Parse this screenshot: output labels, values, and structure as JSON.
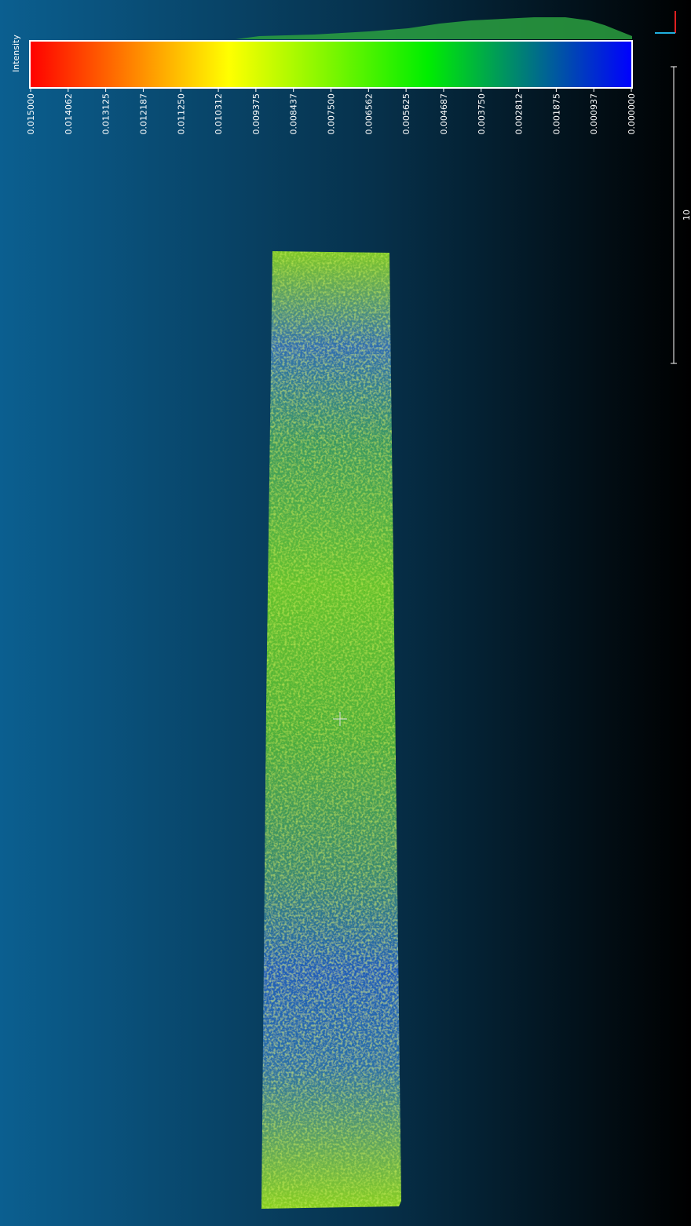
{
  "colorbar": {
    "title": "Intensity",
    "ticks": [
      "0.015000",
      "0.014062",
      "0.013125",
      "0.012187",
      "0.011250",
      "0.010312",
      "0.009375",
      "0.008437",
      "0.007500",
      "0.006562",
      "0.005625",
      "0.004687",
      "0.003750",
      "0.002812",
      "0.001875",
      "0.000937",
      "0.000000"
    ]
  },
  "scale_bar": {
    "label": "10"
  }
}
